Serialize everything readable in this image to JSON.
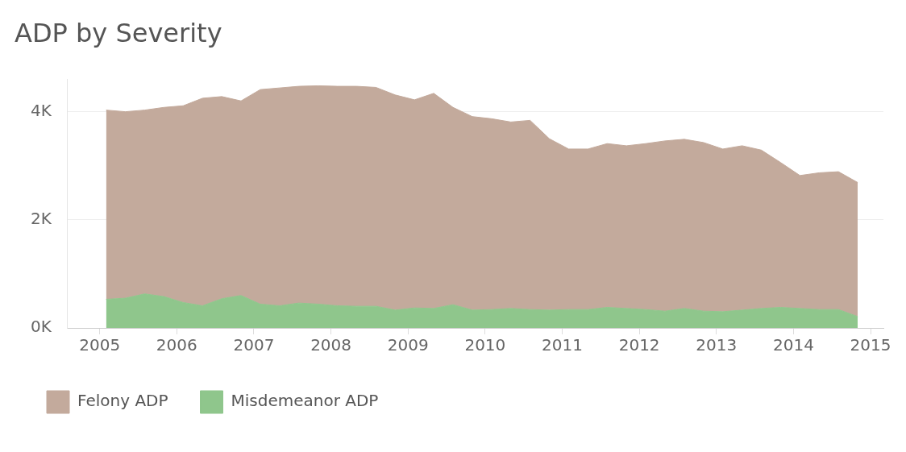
{
  "chart_data": {
    "type": "area",
    "title": "ADP by Severity",
    "stacked": true,
    "grid": "y",
    "legend": "bottom",
    "marker": "none",
    "x": [
      "2005-02",
      "2005-05",
      "2005-08",
      "2005-11",
      "2006-02",
      "2006-05",
      "2006-08",
      "2006-11",
      "2007-02",
      "2007-05",
      "2007-08",
      "2007-11",
      "2008-02",
      "2008-05",
      "2008-08",
      "2008-11",
      "2009-02",
      "2009-05",
      "2009-08",
      "2009-11",
      "2010-02",
      "2010-05",
      "2010-08",
      "2010-11",
      "2011-02",
      "2011-05",
      "2011-08",
      "2011-11",
      "2012-02",
      "2012-05",
      "2012-08",
      "2012-11",
      "2013-02",
      "2013-05",
      "2013-08",
      "2013-11",
      "2014-02",
      "2014-05",
      "2014-08",
      "2014-11"
    ],
    "series": [
      {
        "name": "Misdemeanor ADP",
        "color": "#8fc68c",
        "values": [
          530,
          550,
          630,
          580,
          470,
          410,
          540,
          600,
          440,
          410,
          460,
          440,
          410,
          400,
          400,
          330,
          370,
          360,
          430,
          330,
          340,
          360,
          340,
          330,
          340,
          340,
          380,
          360,
          340,
          310,
          360,
          310,
          300,
          330,
          360,
          380,
          360,
          340,
          340,
          210
        ]
      },
      {
        "name": "Felony ADP",
        "color": "#c3aa9c",
        "values": [
          3500,
          3450,
          3400,
          3500,
          3640,
          3840,
          3740,
          3600,
          3970,
          4030,
          4010,
          4040,
          4060,
          4070,
          4050,
          3980,
          3850,
          3980,
          3650,
          3580,
          3530,
          3450,
          3500,
          3170,
          2970,
          2970,
          3030,
          3010,
          3070,
          3150,
          3130,
          3120,
          3010,
          3040,
          2930,
          2680,
          2460,
          2530,
          2550,
          2480
        ]
      }
    ],
    "xlim": [
      "2004-08",
      "2015-03"
    ],
    "xticks": [
      "2005",
      "2006",
      "2007",
      "2008",
      "2009",
      "2010",
      "2011",
      "2012",
      "2013",
      "2014",
      "2015"
    ],
    "ylim": [
      0,
      4600
    ],
    "yticks": [
      {
        "value": 0,
        "label": "0K"
      },
      {
        "value": 2000,
        "label": "2K"
      },
      {
        "value": 4000,
        "label": "4K"
      }
    ]
  }
}
